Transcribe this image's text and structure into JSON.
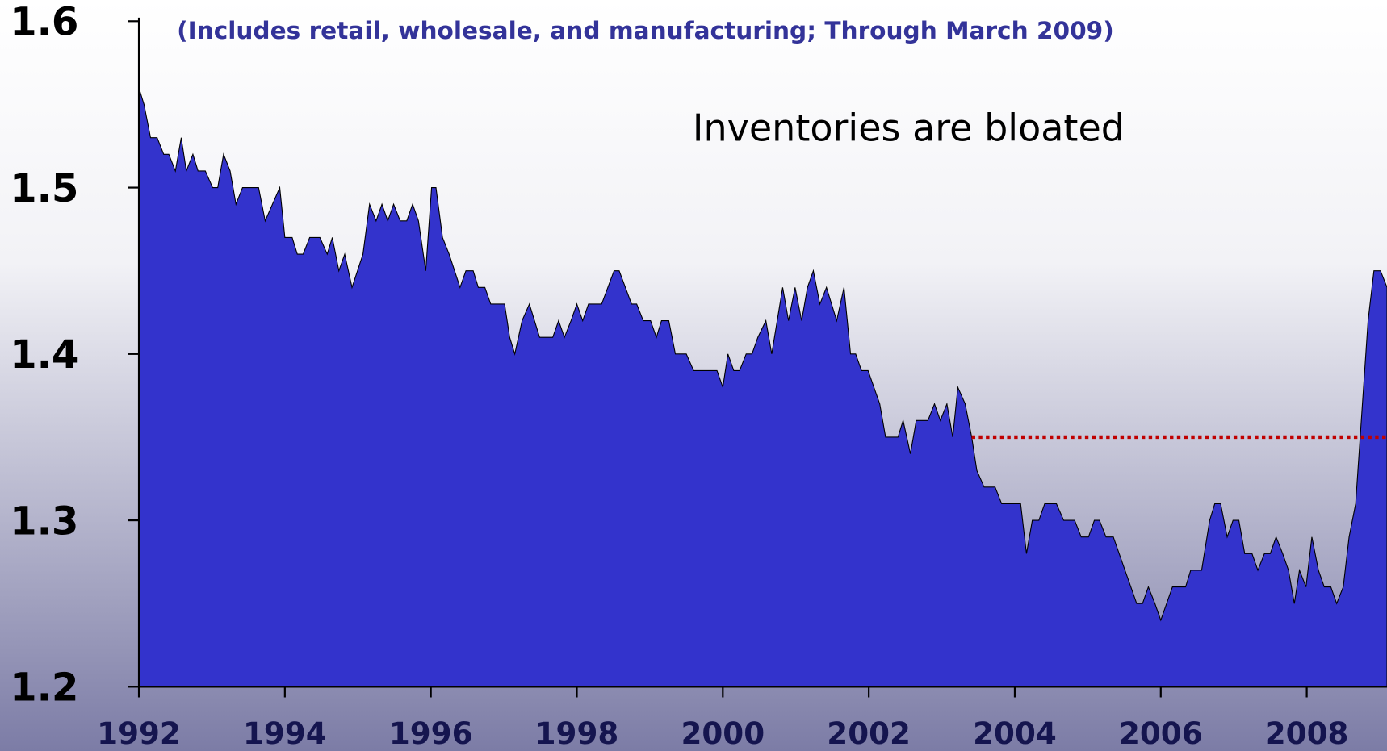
{
  "chart_data": {
    "type": "area",
    "subtitle": "(Includes retail, wholesale, and manufacturing; Through March 2009)",
    "annotation": "Inventories are bloated",
    "color": "#3333cc",
    "x": [
      1992.0,
      1992.07,
      1992.16,
      1992.25,
      1992.34,
      1992.41,
      1992.5,
      1992.58,
      1992.65,
      1992.74,
      1992.81,
      1992.91,
      1993.01,
      1993.08,
      1993.16,
      1993.25,
      1993.33,
      1993.42,
      1993.64,
      1993.73,
      1993.93,
      1994.0,
      1994.1,
      1994.17,
      1994.25,
      1994.34,
      1994.48,
      1994.58,
      1994.65,
      1994.74,
      1994.82,
      1994.92,
      1995.07,
      1995.16,
      1995.25,
      1995.33,
      1995.41,
      1995.49,
      1995.58,
      1995.67,
      1995.75,
      1995.83,
      1995.93,
      1996.01,
      1996.07,
      1996.16,
      1996.25,
      1996.4,
      1996.48,
      1996.58,
      1996.65,
      1996.74,
      1996.82,
      1997.01,
      1997.08,
      1997.15,
      1997.25,
      1997.35,
      1997.49,
      1997.67,
      1997.75,
      1997.83,
      1997.92,
      1998.0,
      1998.08,
      1998.16,
      1998.34,
      1998.51,
      1998.58,
      1998.75,
      1998.82,
      1998.91,
      1999.01,
      1999.09,
      1999.16,
      1999.26,
      1999.35,
      1999.5,
      1999.6,
      1999.92,
      2000.0,
      2000.07,
      2000.15,
      2000.23,
      2000.32,
      2000.4,
      2000.48,
      2000.59,
      2000.67,
      2000.82,
      2000.9,
      2000.99,
      2001.08,
      2001.16,
      2001.24,
      2001.33,
      2001.42,
      2001.56,
      2001.66,
      2001.75,
      2001.82,
      2001.9,
      2001.99,
      2002.15,
      2002.23,
      2002.4,
      2002.47,
      2002.57,
      2002.65,
      2002.81,
      2002.9,
      2002.98,
      2003.07,
      2003.15,
      2003.22,
      2003.32,
      2003.41,
      2003.48,
      2003.58,
      2003.73,
      2003.82,
      2004.08,
      2004.16,
      2004.24,
      2004.33,
      2004.41,
      2004.57,
      2004.67,
      2004.82,
      2004.91,
      2005.01,
      2005.09,
      2005.16,
      2005.25,
      2005.35,
      2005.59,
      2005.67,
      2005.75,
      2005.83,
      2005.92,
      2006.0,
      2006.16,
      2006.34,
      2006.41,
      2006.56,
      2006.67,
      2006.74,
      2006.82,
      2006.91,
      2006.99,
      2007.07,
      2007.15,
      2007.25,
      2007.33,
      2007.42,
      2007.5,
      2007.58,
      2007.67,
      2007.75,
      2007.83,
      2007.9,
      2007.99,
      2008.07,
      2008.16,
      2008.24,
      2008.33,
      2008.41,
      2008.5,
      2008.58,
      2008.67,
      2008.84,
      2008.92,
      2009.01,
      2009.1
    ],
    "values": [
      1.56,
      1.55,
      1.53,
      1.53,
      1.52,
      1.52,
      1.51,
      1.53,
      1.51,
      1.52,
      1.51,
      1.51,
      1.5,
      1.5,
      1.52,
      1.51,
      1.49,
      1.5,
      1.5,
      1.48,
      1.5,
      1.47,
      1.47,
      1.46,
      1.46,
      1.47,
      1.47,
      1.46,
      1.47,
      1.45,
      1.46,
      1.44,
      1.46,
      1.49,
      1.48,
      1.49,
      1.48,
      1.49,
      1.48,
      1.48,
      1.49,
      1.48,
      1.45,
      1.5,
      1.5,
      1.47,
      1.46,
      1.44,
      1.45,
      1.45,
      1.44,
      1.44,
      1.43,
      1.43,
      1.41,
      1.4,
      1.42,
      1.43,
      1.41,
      1.41,
      1.42,
      1.41,
      1.42,
      1.43,
      1.42,
      1.43,
      1.43,
      1.45,
      1.45,
      1.43,
      1.43,
      1.42,
      1.42,
      1.41,
      1.42,
      1.42,
      1.4,
      1.4,
      1.39,
      1.39,
      1.38,
      1.4,
      1.39,
      1.39,
      1.4,
      1.4,
      1.41,
      1.42,
      1.4,
      1.44,
      1.42,
      1.44,
      1.42,
      1.44,
      1.45,
      1.43,
      1.44,
      1.42,
      1.44,
      1.4,
      1.4,
      1.39,
      1.39,
      1.37,
      1.35,
      1.35,
      1.36,
      1.34,
      1.36,
      1.36,
      1.37,
      1.36,
      1.37,
      1.35,
      1.38,
      1.37,
      1.35,
      1.33,
      1.32,
      1.32,
      1.31,
      1.31,
      1.28,
      1.3,
      1.3,
      1.31,
      1.31,
      1.3,
      1.3,
      1.29,
      1.29,
      1.3,
      1.3,
      1.29,
      1.29,
      1.26,
      1.25,
      1.25,
      1.26,
      1.25,
      1.24,
      1.26,
      1.26,
      1.27,
      1.27,
      1.3,
      1.31,
      1.31,
      1.29,
      1.3,
      1.3,
      1.28,
      1.28,
      1.27,
      1.28,
      1.28,
      1.29,
      1.28,
      1.27,
      1.25,
      1.27,
      1.26,
      1.29,
      1.27,
      1.26,
      1.26,
      1.25,
      1.26,
      1.29,
      1.31,
      1.42,
      1.45,
      1.45,
      1.44
    ],
    "xlim": [
      1992,
      2009.1
    ],
    "ylim": [
      1.2,
      1.6
    ],
    "xticks": [
      1992,
      1994,
      1996,
      1998,
      2000,
      2002,
      2004,
      2006,
      2008
    ],
    "yticks": [
      1.2,
      1.3,
      1.4,
      1.5,
      1.6
    ],
    "reference_line": {
      "value": 1.35,
      "x_start": 2003.41,
      "color": "#c00000"
    }
  }
}
